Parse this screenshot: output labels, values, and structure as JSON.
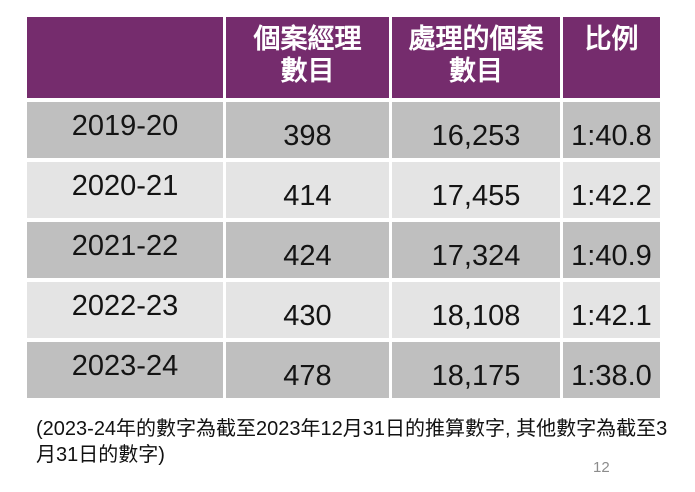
{
  "colors": {
    "header_purple": "#752C6D",
    "row_dark": "#BFBFBF",
    "row_light": "#E4E4E4",
    "header_text": "#FFFFFF",
    "body_text": "#141414",
    "page_number_gray": "#8C8C8C"
  },
  "table": {
    "columns": [
      {
        "label": ""
      },
      {
        "label": "個案經理\n數目"
      },
      {
        "label": "處理的個案\n數目"
      },
      {
        "label": "比例"
      }
    ],
    "rows": [
      {
        "year": "2019-20",
        "managers": "398",
        "cases": "16,253",
        "ratio": "1:40.8"
      },
      {
        "year": "2020-21",
        "managers": "414",
        "cases": "17,455",
        "ratio": "1:42.2"
      },
      {
        "year": "2021-22",
        "managers": "424",
        "cases": "17,324",
        "ratio": "1:40.9"
      },
      {
        "year": "2022-23",
        "managers": "430",
        "cases": "18,108",
        "ratio": "1:42.1"
      },
      {
        "year": "2023-24",
        "managers": "478",
        "cases": "18,175",
        "ratio": "1:38.0"
      }
    ]
  },
  "footnote": "(2023-24年的數字為截至2023年12月31日的推算數字, 其他數字為截至3月31日的數字)",
  "page_number": "12",
  "chart_data": {
    "type": "table",
    "title": "",
    "columns": [
      "",
      "個案經理數目",
      "處理的個案數目",
      "比例"
    ],
    "rows": [
      [
        "2019-20",
        398,
        16253,
        "1:40.8"
      ],
      [
        "2020-21",
        414,
        17455,
        "1:42.2"
      ],
      [
        "2021-22",
        424,
        17324,
        "1:40.9"
      ],
      [
        "2022-23",
        430,
        18108,
        "1:42.1"
      ],
      [
        "2023-24",
        478,
        18175,
        "1:38.0"
      ]
    ],
    "notes": "(2023-24年的數字為截至2023年12月31日的推算數字, 其他數字為截至3月31日的數字)"
  }
}
